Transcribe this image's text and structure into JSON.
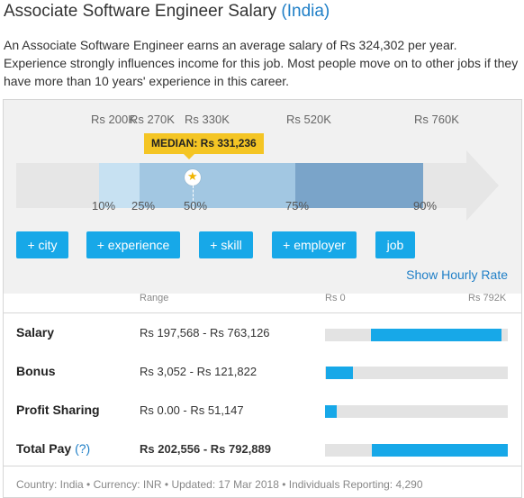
{
  "header": {
    "title": "Associate Software Engineer Salary",
    "country": "(India)"
  },
  "description": "An Associate Software Engineer earns an average salary of Rs 324,302 per year. Experience strongly influences income for this job. Most people move on to other jobs if they have more than 10 years' experience in this career.",
  "distribution": {
    "tick_labels": [
      "Rs 200K",
      "Rs 270K",
      "Rs 330K",
      "Rs 520K",
      "Rs 760K"
    ],
    "median_label": "MEDIAN: Rs 331,236",
    "percentiles": [
      "10%",
      "25%",
      "50%",
      "75%",
      "90%"
    ],
    "colors": {
      "outer": "#e6e6e6",
      "p10_25": "#c7e1f2",
      "p25_75": "#a2c7e2",
      "p75_90": "#7aa4c9",
      "arrow": "#e6e6e6"
    }
  },
  "filters": {
    "city": "+ city",
    "experience": "+ experience",
    "skill": "+ skill",
    "employer": "+ employer",
    "job": "job"
  },
  "hourly_link": "Show Hourly Rate",
  "table": {
    "range_header": "Range",
    "axis_min": "Rs 0",
    "axis_max": "Rs 792K",
    "rows": [
      {
        "label": "Salary",
        "range": "Rs 197,568 - Rs 763,126",
        "low": 197568,
        "high": 763126
      },
      {
        "label": "Bonus",
        "range": "Rs 3,052 - Rs 121,822",
        "low": 3052,
        "high": 121822
      },
      {
        "label": "Profit Sharing",
        "range": "Rs 0.00 - Rs 51,147",
        "low": 0,
        "high": 51147
      },
      {
        "label": "Total Pay",
        "help": "(?)",
        "range": "Rs 202,556 - Rs 792,889",
        "low": 202556,
        "high": 792889
      }
    ],
    "max_value": 792889,
    "bar_color": "#17a8e8",
    "track_color": "#e3e3e3"
  },
  "footer": "Country: India • Currency: INR • Updated: 17 Mar 2018 • Individuals Reporting: 4,290"
}
